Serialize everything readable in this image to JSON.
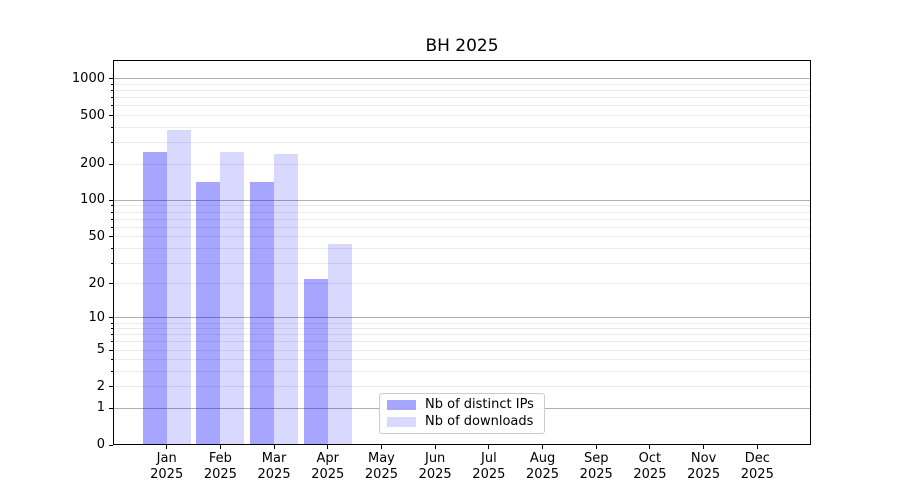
{
  "chart_data": {
    "type": "bar",
    "title": "BH 2025",
    "categories": [
      "Jan 2025",
      "Feb 2025",
      "Mar 2025",
      "Apr 2025",
      "May 2025",
      "Jun 2025",
      "Jul 2025",
      "Aug 2025",
      "Sep 2025",
      "Oct 2025",
      "Nov 2025",
      "Dec 2025"
    ],
    "series": [
      {
        "name": "Nb of distinct IPs",
        "color": "rgba(0,0,255,0.35)",
        "values": [
          250,
          142,
          143,
          22,
          0,
          0,
          0,
          0,
          0,
          0,
          0,
          0
        ]
      },
      {
        "name": "Nb of downloads",
        "color": "rgba(0,0,255,0.15)",
        "values": [
          380,
          250,
          240,
          43,
          0,
          0,
          0,
          0,
          0,
          0,
          0,
          0
        ]
      }
    ],
    "yscale": "log1p",
    "yticks": [
      0,
      1,
      2,
      5,
      10,
      20,
      50,
      100,
      200,
      500,
      1000
    ],
    "ylim": [
      0,
      1430
    ],
    "xlabel": "",
    "ylabel": "",
    "grid": "on",
    "legend_position": "lower-center"
  },
  "colors": {
    "major_grid": "#b0b0b0",
    "minor_grid": "#eaeaea",
    "spine": "#000000"
  }
}
